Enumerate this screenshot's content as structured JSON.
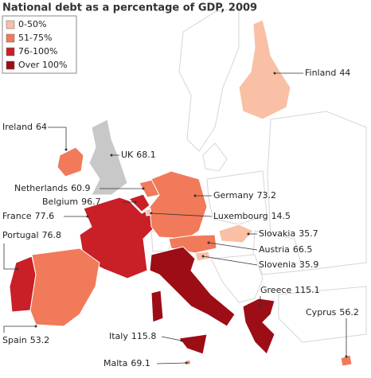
{
  "title": "National debt as a percentage of GDP, 2009",
  "legend": [
    {
      "label": "0-50%",
      "color": "#f9c0a5"
    },
    {
      "label": "51-75%",
      "color": "#f07a5a"
    },
    {
      "label": "76-100%",
      "color": "#c91f27"
    },
    {
      "label": "Over 100%",
      "color": "#9c0d15"
    }
  ],
  "countries": [
    {
      "name": "Finland",
      "value": 44,
      "color": "#f9c0a5"
    },
    {
      "name": "Ireland",
      "value": 64,
      "color": "#f07a5a"
    },
    {
      "name": "UK",
      "value": 68.1,
      "color": "#c8c8c8"
    },
    {
      "name": "Netherlands",
      "value": 60.9,
      "color": "#f07a5a"
    },
    {
      "name": "Belgium",
      "value": 96.7,
      "color": "#c91f27"
    },
    {
      "name": "France",
      "value": 77.6,
      "color": "#c91f27"
    },
    {
      "name": "Portugal",
      "value": 76.8,
      "color": "#c91f27"
    },
    {
      "name": "Spain",
      "value": 53.2,
      "color": "#f07a5a"
    },
    {
      "name": "Germany",
      "value": 73.2,
      "color": "#f07a5a"
    },
    {
      "name": "Luxembourg",
      "value": 14.5,
      "color": "#f9c0a5"
    },
    {
      "name": "Slovakia",
      "value": 35.7,
      "color": "#f9c0a5"
    },
    {
      "name": "Austria",
      "value": 66.5,
      "color": "#f07a5a"
    },
    {
      "name": "Slovenia",
      "value": 35.9,
      "color": "#f9c0a5"
    },
    {
      "name": "Greece",
      "value": 115.1,
      "color": "#9c0d15"
    },
    {
      "name": "Cyprus",
      "value": 56.2,
      "color": "#f07a5a"
    },
    {
      "name": "Italy",
      "value": 115.8,
      "color": "#9c0d15"
    },
    {
      "name": "Malta",
      "value": 69.1,
      "color": "#f07a5a"
    }
  ]
}
